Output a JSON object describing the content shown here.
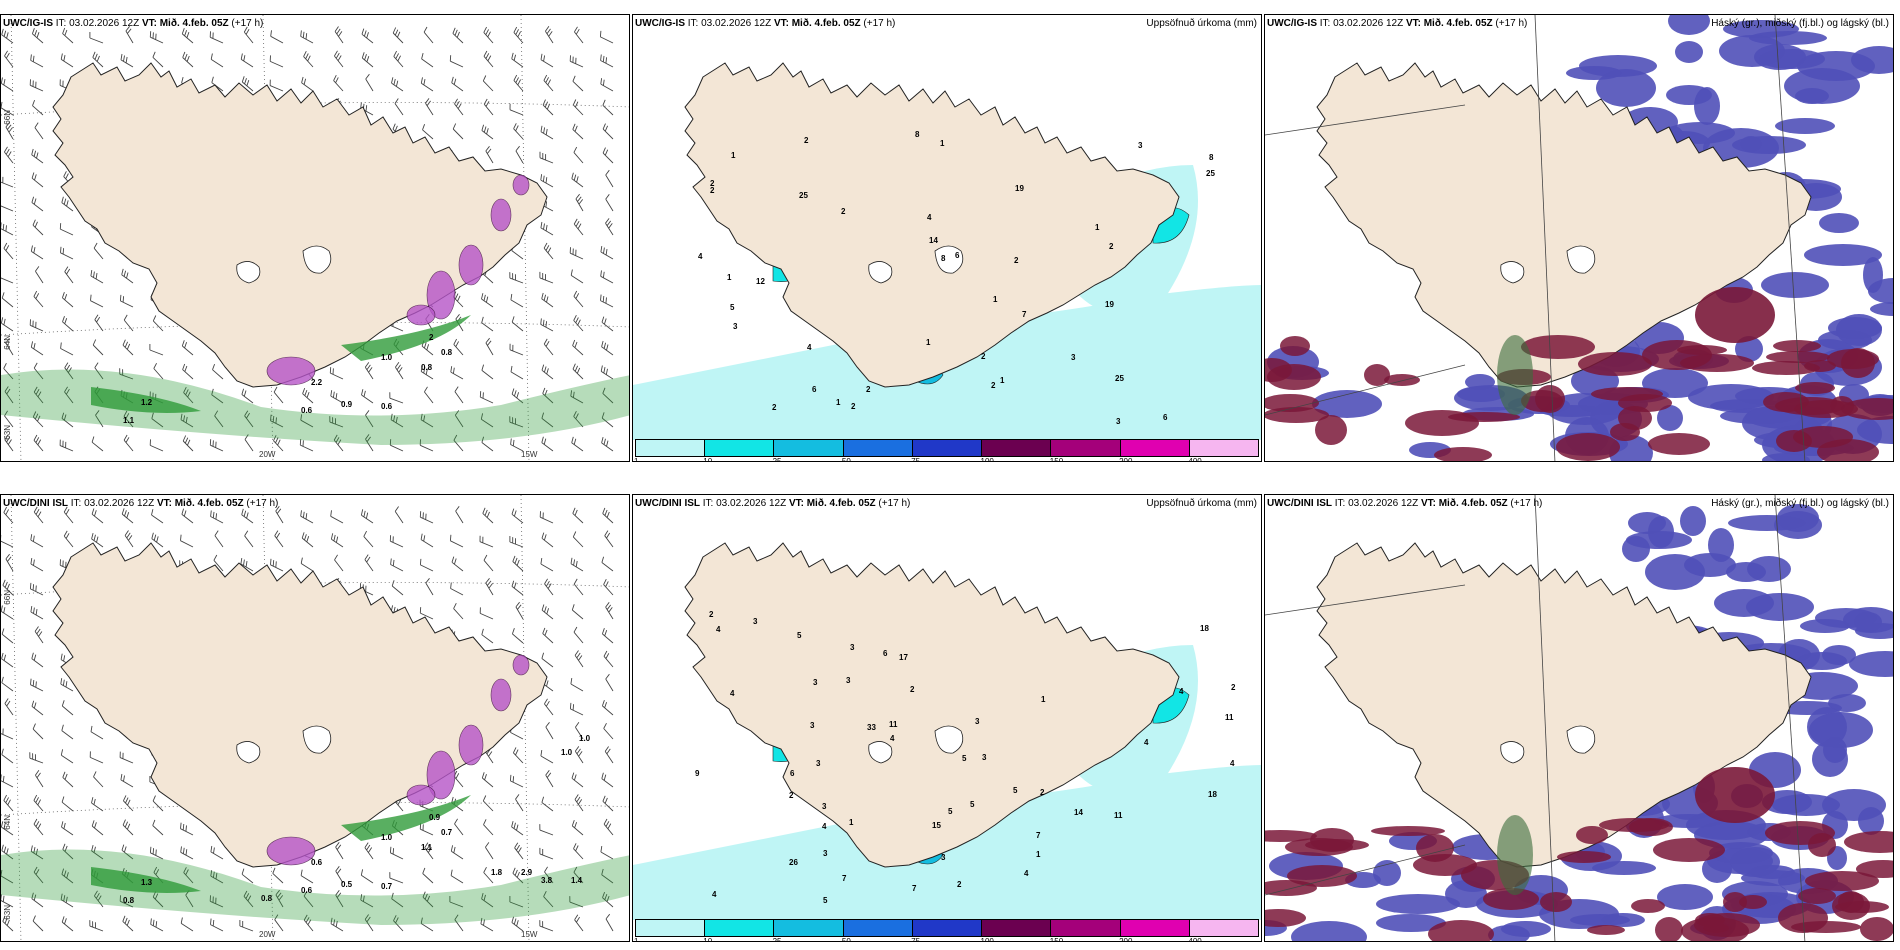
{
  "panels": [
    {
      "id": "p1",
      "title_model": "UWC/IG-IS",
      "title_it": " IT: 03.02.2026 12Z ",
      "title_vt_label": "VT:",
      "title_vt": " Mið. 4.feb. 05Z",
      "title_lead": " (+17 h)",
      "right_title": "",
      "lat_labels": [
        "66N",
        "64N",
        "63N"
      ],
      "lon_labels": [
        "20W",
        "15W"
      ],
      "right_lat_labels": [],
      "values": [
        "0.8",
        "0.6",
        "0.6",
        "1.2",
        "1.1",
        "0.9",
        "2",
        "0.8",
        "1.0",
        "2.2"
      ]
    },
    {
      "id": "p2",
      "title_model": "UWC/IG-IS",
      "title_it": " IT: 03.02.2026 12Z ",
      "title_vt_label": "VT:",
      "title_vt": " Mið. 4.feb. 05Z",
      "title_lead": " (+17 h)",
      "right_title": "Uppsöfnuð úrkoma (mm)",
      "colorbar_ticks": [
        "1",
        "10",
        "25",
        "50",
        "75",
        "100",
        "150",
        "200",
        "400"
      ],
      "values": [
        "4",
        "1",
        "1",
        "8",
        "2",
        "6",
        "12",
        "19",
        "4",
        "3",
        "6",
        "19",
        "8",
        "2",
        "25",
        "4",
        "1",
        "1",
        "1",
        "1",
        "3",
        "25",
        "25",
        "14",
        "6",
        "8",
        "7",
        "2",
        "2",
        "2",
        "5",
        "3",
        "2",
        "2",
        "1",
        "3",
        "2",
        "1",
        "2",
        "2",
        "2"
      ]
    },
    {
      "id": "p3",
      "title_model": "UWC/IG-IS",
      "title_it": " IT: 03.02.2026 12Z ",
      "title_vt_label": "VT:",
      "title_vt": " Mið. 4.feb. 05Z",
      "title_lead": " (+17 h)",
      "right_title": "Háský (gr.), miðský (fj.bl.) og lágský (bl.)"
    },
    {
      "id": "p4",
      "title_model": "UWC/DINI ISL",
      "title_it": " IT: 03.02.2026 12Z ",
      "title_vt_label": "VT:",
      "title_vt": " Mið. 4.feb. 05Z",
      "title_lead": " (+17 h)",
      "right_title": "",
      "lat_labels": [
        "66N",
        "64N",
        "63N"
      ],
      "lon_labels": [
        "20W",
        "15W"
      ],
      "values": [
        "1.1",
        "0.6",
        "0.7",
        "1.3",
        "0.8",
        "0.5",
        "0.9",
        "0.7",
        "1.0",
        "0.6",
        "1.4",
        "1.0",
        "1.0",
        "2.9",
        "1.8",
        "3.8",
        "0.8"
      ]
    },
    {
      "id": "p5",
      "title_model": "UWC/DINI ISL",
      "title_it": " IT: 03.02.2026 12Z ",
      "title_vt_label": "VT:",
      "title_vt": " Mið. 4.feb. 05Z",
      "title_lead": " (+17 h)",
      "right_title": "Uppsöfnuð úrkoma (mm)",
      "colorbar_ticks": [
        "1",
        "10",
        "25",
        "50",
        "75",
        "100",
        "150",
        "200",
        "400"
      ],
      "values": [
        "4",
        "2",
        "9",
        "18",
        "2",
        "7",
        "17",
        "1",
        "4",
        "14",
        "4",
        "3",
        "5",
        "2",
        "5",
        "33",
        "15",
        "26",
        "3",
        "11",
        "11",
        "3",
        "7",
        "3",
        "6",
        "5",
        "3",
        "11",
        "7",
        "6",
        "5",
        "3",
        "4",
        "18",
        "5",
        "3",
        "5",
        "4",
        "1",
        "1",
        "3",
        "2",
        "2",
        "2",
        "3",
        "3",
        "3",
        "4",
        "4",
        "4",
        "4"
      ]
    },
    {
      "id": "p6",
      "title_model": "UWC/DINI ISL",
      "title_it": " IT: 03.02.2026 12Z ",
      "title_vt_label": "VT:",
      "title_vt": " Mið. 4.feb. 05Z",
      "title_lead": " (+17 h)",
      "right_title": "Háský (gr.), miðský (fj.bl.) og lágský (bl.)"
    }
  ],
  "colors": {
    "land": "#f3e6d6",
    "precip": [
      "#bff5f5",
      "#12e5e5",
      "#14bde0",
      "#1a6fe0",
      "#2038c8",
      "#6b0050",
      "#a4007a",
      "#e000b0",
      "#f6b6f0"
    ],
    "green_precip": "#2f9b3a",
    "snow_magenta": "#b655c8",
    "cloud_high": "#3a6d3a",
    "cloud_mid": "#5050b8",
    "cloud_low": "#7a1838"
  }
}
